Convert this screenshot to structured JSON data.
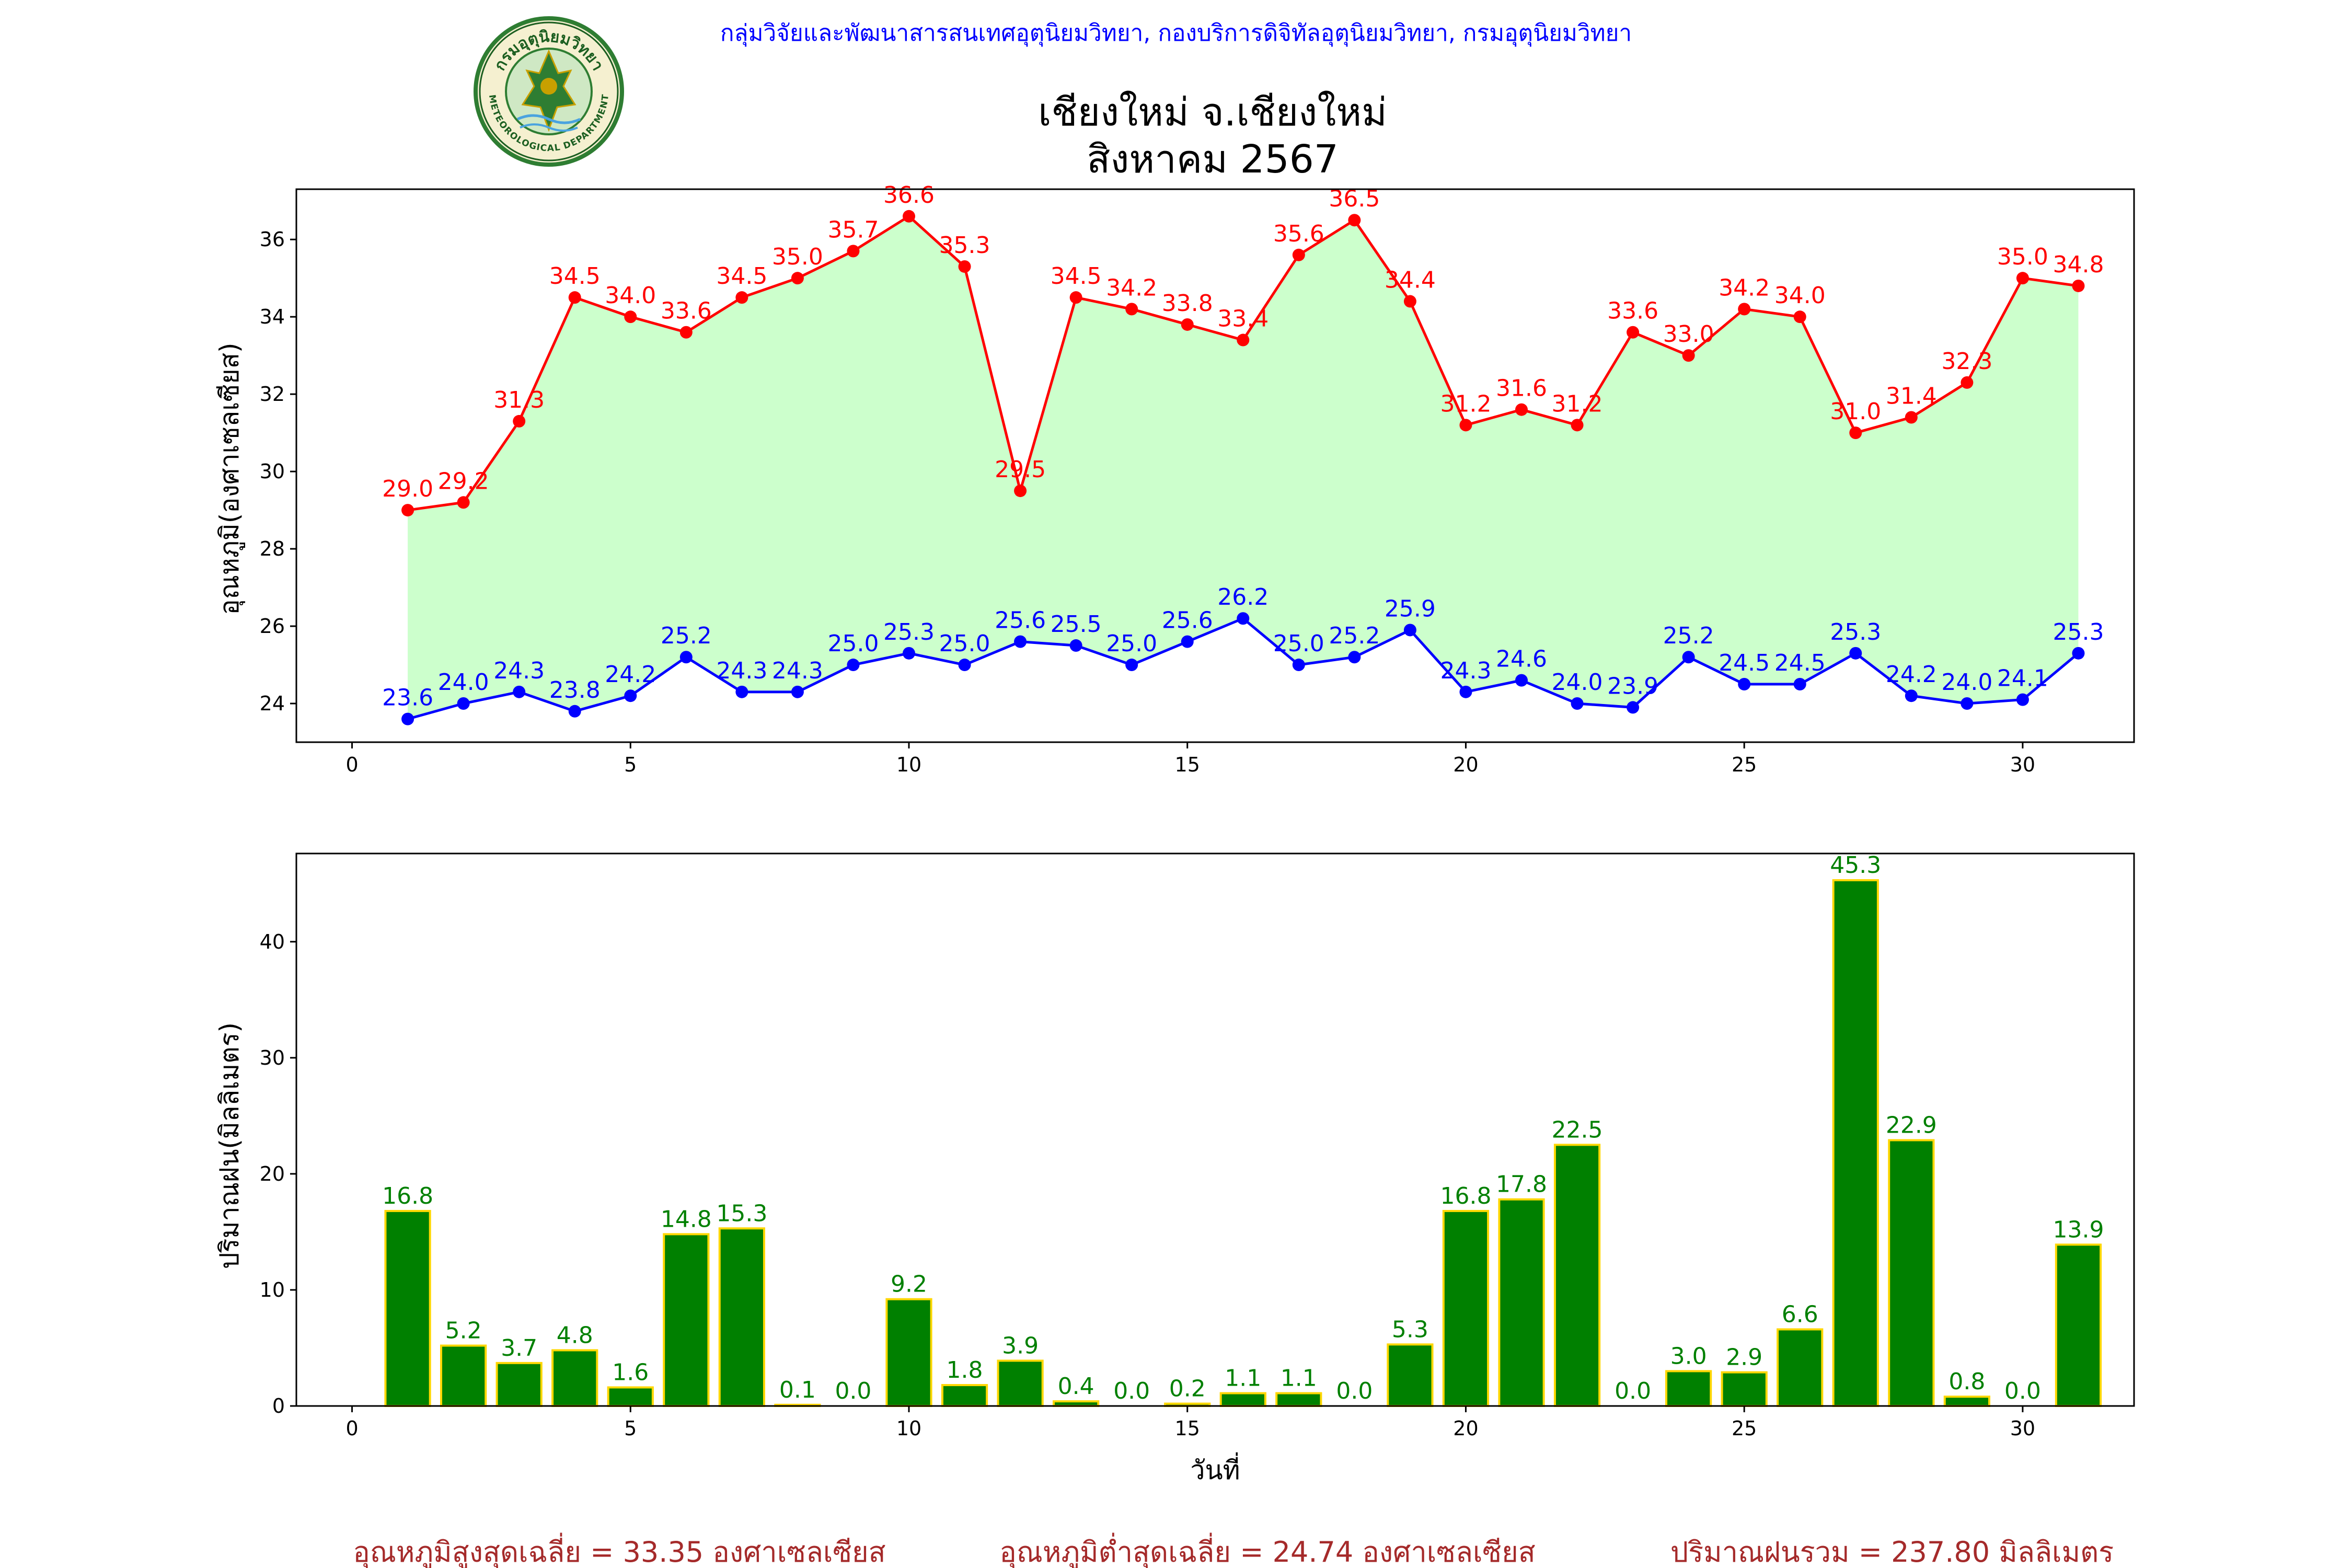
{
  "header": {
    "org_line": "กลุ่มวิจัยและพัฒนาสารสนเทศอุตุนิยมวิทยา, กองบริการดิจิทัลอุตุนิยมวิทยา, กรมอุตุนิยมวิทยา",
    "logo_text": "กรมอุตุนิยมวิทยา",
    "logo_text_en": "METEOROLOGICAL DEPARTMENT",
    "title_line1": "เชียงใหม่ จ.เชียงใหม่",
    "title_line2": "สิงหาคม 2567"
  },
  "footer": {
    "avg_max": "อุณหภูมิสูงสุดเฉลี่ย = 33.35 องศาเซลเซียส",
    "avg_min": "อุณหภูมิต่ำสุดเฉลี่ย = 24.74 องศาเซลเซียส",
    "rain_total": "ปริมาณฝนรวม = 237.80 มิลลิเมตร"
  },
  "colors": {
    "max_line": "#ff0000",
    "min_line": "#0000ff",
    "fill": "#ccffcc",
    "bar": "#008000",
    "bar_edge": "#ffd700",
    "header": "#0000ff",
    "footer": "#a52a2a"
  },
  "chart_data": [
    {
      "type": "line",
      "ylabel": "อุณหภูมิ(องศาเซลเซียส)",
      "xlim": [
        -1,
        32
      ],
      "ylim": [
        23,
        37.3
      ],
      "xticks": [
        0,
        5,
        10,
        15,
        20,
        25,
        30
      ],
      "yticks": [
        24,
        26,
        28,
        30,
        32,
        34,
        36
      ],
      "fill_between": true,
      "x": [
        1,
        2,
        3,
        4,
        5,
        6,
        7,
        8,
        9,
        10,
        11,
        12,
        13,
        14,
        15,
        16,
        17,
        18,
        19,
        20,
        21,
        22,
        23,
        24,
        25,
        26,
        27,
        28,
        29,
        30,
        31
      ],
      "series": [
        {
          "values": [
            29.0,
            29.2,
            31.3,
            34.5,
            34.0,
            33.6,
            34.5,
            35.0,
            35.7,
            36.6,
            35.3,
            29.5,
            34.5,
            34.2,
            33.8,
            33.4,
            35.6,
            36.5,
            34.4,
            31.2,
            31.6,
            31.2,
            33.6,
            33.0,
            34.2,
            34.0,
            31.0,
            31.4,
            32.3,
            35.0,
            34.8
          ],
          "labels": [
            "29.0",
            "29.2",
            "31.3",
            "34.5",
            "34.0",
            "33.6",
            "34.5",
            "35.0",
            "35.7",
            "36.6",
            "35.3",
            "29.5",
            "34.5",
            "34.2",
            "33.8",
            "33.4",
            "35.6",
            "36.5",
            "34.4",
            "31.2",
            "31.6",
            "31.2",
            "33.6",
            "33.0",
            "34.2",
            "34.0",
            "31.0",
            "31.4",
            "32.3",
            "35.0",
            "34.8"
          ]
        },
        {
          "values": [
            23.6,
            24.0,
            24.3,
            23.8,
            24.2,
            25.2,
            24.3,
            24.3,
            25.0,
            25.3,
            25.0,
            25.6,
            25.5,
            25.0,
            25.6,
            26.2,
            25.0,
            25.2,
            25.9,
            24.3,
            24.6,
            24.0,
            23.9,
            25.2,
            24.5,
            24.5,
            25.3,
            24.2,
            24.0,
            24.1,
            25.3
          ],
          "labels": [
            "23.6",
            "24.0",
            "24.3",
            "23.8",
            "24.2",
            "25.2",
            "24.3",
            "24.3",
            "25.0",
            "25.3",
            "25.0",
            "25.6",
            "25.5",
            "25.0",
            "25.6",
            "26.2",
            "25.0",
            "25.2",
            "25.9",
            "24.3",
            "24.6",
            "24.0",
            "23.9",
            "25.2",
            "24.5",
            "24.5",
            "25.3",
            "24.2",
            "24.0",
            "24.1",
            "25.3"
          ]
        }
      ]
    },
    {
      "type": "bar",
      "xlabel": "วันที่",
      "ylabel": "ปริมาณฝน(มิลลิเมตร)",
      "xlim": [
        -1,
        32
      ],
      "ylim": [
        0,
        47.6
      ],
      "xticks": [
        0,
        5,
        10,
        15,
        20,
        25,
        30
      ],
      "yticks": [
        0,
        10,
        20,
        30,
        40
      ],
      "categories": [
        1,
        2,
        3,
        4,
        5,
        6,
        7,
        8,
        9,
        10,
        11,
        12,
        13,
        14,
        15,
        16,
        17,
        18,
        19,
        20,
        21,
        22,
        23,
        24,
        25,
        26,
        27,
        28,
        29,
        30,
        31
      ],
      "values": [
        16.8,
        5.2,
        3.7,
        4.8,
        1.6,
        14.8,
        15.3,
        0.1,
        0.0,
        9.2,
        1.8,
        3.9,
        0.4,
        0.0,
        0.2,
        1.1,
        1.1,
        0.0,
        5.3,
        16.8,
        17.8,
        22.5,
        0.0,
        3.0,
        2.9,
        6.6,
        45.3,
        22.9,
        0.8,
        0.0,
        13.9
      ],
      "labels": [
        "16.8",
        "5.2",
        "3.7",
        "4.8",
        "1.6",
        "14.8",
        "15.3",
        "0.1",
        "0.0",
        "9.2",
        "1.8",
        "3.9",
        "0.4",
        "0.0",
        "0.2",
        "1.1",
        "1.1",
        "0.0",
        "5.3",
        "16.8",
        "17.8",
        "22.5",
        "0.0",
        "3.0",
        "2.9",
        "6.6",
        "45.3",
        "22.9",
        "0.8",
        "0.0",
        "13.9"
      ]
    }
  ]
}
